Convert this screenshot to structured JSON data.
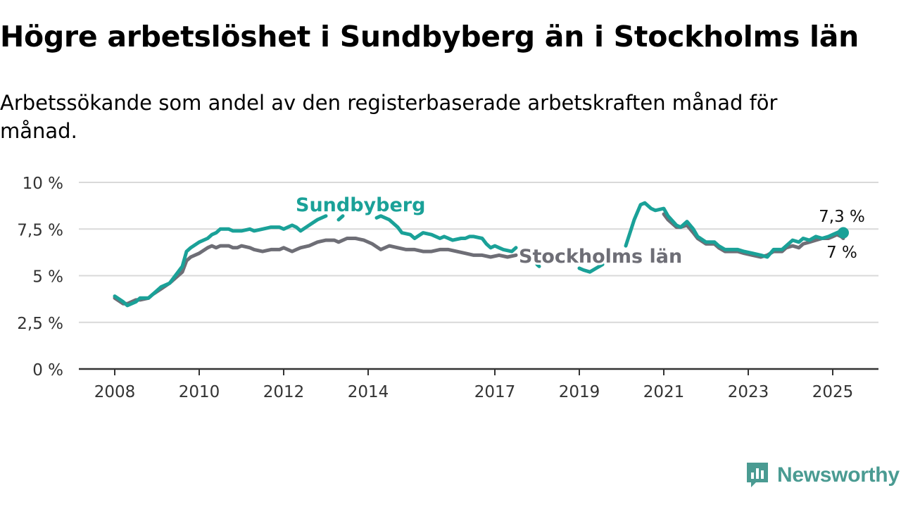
{
  "title": "Högre arbetslöshet i Sundbyberg än i Stockholms län",
  "subtitle": "Arbetssökande som andel av den registerbaserade arbetskraften månad för månad.",
  "brand": {
    "name": "Newsworthy",
    "icon": "newsworthy-logo-icon"
  },
  "colors": {
    "sundbyberg": "#1aa198",
    "stockholm": "#6e6e76",
    "grid": "#d9d9d9",
    "axis": "#333333"
  },
  "chart_data": {
    "type": "line",
    "title": "Högre arbetslöshet i Sundbyberg än i Stockholms län",
    "subtitle": "Arbetssökande som andel av den registerbaserade arbetskraften månad för månad.",
    "xlabel": "",
    "ylabel": "",
    "xlim": [
      2007.7,
      2026.1
    ],
    "ylim": [
      0,
      10
    ],
    "y_ticks": [
      0,
      2.5,
      5,
      7.5,
      10
    ],
    "y_tick_labels": [
      "0 %",
      "2,5 %",
      "5 %",
      "7,5 %",
      "10 %"
    ],
    "x_ticks": [
      2008,
      2010,
      2012,
      2014,
      2017,
      2019,
      2021,
      2023,
      2025
    ],
    "x_tick_labels": [
      "2008",
      "2010",
      "2012",
      "2014",
      "2017",
      "2019",
      "2021",
      "2023",
      "2025"
    ],
    "grid": true,
    "legend": "inline labels",
    "series": [
      {
        "name": "Sundbyberg",
        "label": "Sundbyberg",
        "end_label": "7,3 %",
        "x": [
          2008.0,
          2008.2,
          2008.3,
          2008.5,
          2008.6,
          2008.8,
          2008.9,
          2009.1,
          2009.3,
          2009.5,
          2009.6,
          2009.7,
          2009.8,
          2010.0,
          2010.2,
          2010.3,
          2010.4,
          2010.5,
          2010.7,
          2010.8,
          2010.9,
          2011.0,
          2011.2,
          2011.3,
          2011.5,
          2011.7,
          2011.8,
          2011.9,
          2012.0,
          2012.2,
          2012.3,
          2012.4,
          2012.6,
          2012.8,
          2013.0,
          null,
          2013.3,
          2013.4,
          null,
          2014.2,
          2014.3,
          2014.5,
          2014.7,
          2014.8,
          2015.0,
          2015.1,
          2015.3,
          2015.5,
          2015.7,
          2015.8,
          2016.0,
          2016.2,
          2016.3,
          2016.4,
          2016.5,
          2016.7,
          2016.8,
          2016.9,
          2017.0,
          2017.1,
          2017.2,
          2017.4,
          2017.5,
          null,
          2018.0,
          2018.05,
          null,
          2019.0,
          2019.1,
          2019.25,
          2019.4,
          2019.55,
          null,
          2020.1,
          2020.3,
          2020.45,
          2020.55,
          2020.7,
          2020.8,
          2021.0,
          2021.1,
          2021.3,
          2021.4,
          2021.55,
          2021.7,
          2021.8,
          2022.0,
          2022.2,
          2022.3,
          2022.45,
          2022.6,
          2022.75,
          2022.9,
          2023.1,
          2023.3,
          2023.45,
          2023.6,
          2023.8,
          2023.9,
          2024.05,
          2024.2,
          2024.3,
          2024.45,
          2024.6,
          2024.75,
          2024.9,
          2025.0,
          2025.1,
          2025.2,
          2025.25
        ],
        "y": [
          3.9,
          3.6,
          3.4,
          3.6,
          3.8,
          3.8,
          4.0,
          4.4,
          4.6,
          5.2,
          5.5,
          6.3,
          6.5,
          6.8,
          7.0,
          7.2,
          7.3,
          7.5,
          7.5,
          7.4,
          7.4,
          7.4,
          7.5,
          7.4,
          7.5,
          7.6,
          7.6,
          7.6,
          7.5,
          7.7,
          7.6,
          7.4,
          7.7,
          8.0,
          8.2,
          null,
          8.0,
          8.2,
          null,
          8.1,
          8.2,
          8.0,
          7.6,
          7.3,
          7.2,
          7.0,
          7.3,
          7.2,
          7.0,
          7.1,
          6.9,
          7.0,
          7.0,
          7.1,
          7.1,
          7.0,
          6.7,
          6.5,
          6.6,
          6.5,
          6.4,
          6.3,
          6.5,
          null,
          5.6,
          5.5,
          null,
          5.4,
          5.3,
          5.2,
          5.4,
          5.6,
          null,
          6.6,
          8.0,
          8.8,
          8.9,
          8.6,
          8.5,
          8.6,
          8.2,
          7.7,
          7.6,
          7.9,
          7.5,
          7.1,
          6.8,
          6.8,
          6.6,
          6.4,
          6.4,
          6.4,
          6.3,
          6.2,
          6.1,
          6.0,
          6.4,
          6.4,
          6.6,
          6.9,
          6.8,
          7.0,
          6.9,
          7.1,
          7.0,
          7.1,
          7.2,
          7.3,
          7.4,
          7.3
        ],
        "color": "#1aa198"
      },
      {
        "name": "Stockholms län",
        "label": "Stockholms län",
        "end_label": "7 %",
        "x": [
          2008.0,
          2008.2,
          2008.3,
          2008.5,
          2008.6,
          2008.8,
          2008.9,
          2009.1,
          2009.3,
          2009.5,
          2009.6,
          2009.7,
          2009.8,
          2010.0,
          2010.2,
          2010.3,
          2010.4,
          2010.5,
          2010.7,
          2010.8,
          2010.9,
          2011.0,
          2011.2,
          2011.3,
          2011.5,
          2011.7,
          2011.8,
          2011.9,
          2012.0,
          2012.2,
          2012.3,
          2012.4,
          2012.6,
          2012.8,
          2013.0,
          2013.2,
          2013.3,
          2013.5,
          2013.7,
          2013.9,
          2014.1,
          2014.3,
          2014.5,
          2014.7,
          2014.9,
          2015.1,
          2015.3,
          2015.5,
          2015.7,
          2015.9,
          2016.1,
          2016.3,
          2016.5,
          2016.7,
          2016.9,
          2017.1,
          2017.3,
          2017.5,
          null,
          2021.0,
          2021.1,
          2021.3,
          2021.4,
          2021.55,
          2021.7,
          2021.8,
          2022.0,
          2022.2,
          2022.3,
          2022.45,
          2022.6,
          2022.75,
          2022.9,
          2023.1,
          2023.3,
          2023.45,
          2023.6,
          2023.8,
          2023.9,
          2024.05,
          2024.2,
          2024.3,
          2024.45,
          2024.6,
          2024.75,
          2024.9,
          2025.0,
          2025.1,
          2025.2,
          2025.25
        ],
        "y": [
          3.8,
          3.5,
          3.5,
          3.7,
          3.7,
          3.8,
          4.0,
          4.3,
          4.6,
          5.0,
          5.2,
          5.8,
          6.0,
          6.2,
          6.5,
          6.6,
          6.5,
          6.6,
          6.6,
          6.5,
          6.5,
          6.6,
          6.5,
          6.4,
          6.3,
          6.4,
          6.4,
          6.4,
          6.5,
          6.3,
          6.4,
          6.5,
          6.6,
          6.8,
          6.9,
          6.9,
          6.8,
          7.0,
          7.0,
          6.9,
          6.7,
          6.4,
          6.6,
          6.5,
          6.4,
          6.4,
          6.3,
          6.3,
          6.4,
          6.4,
          6.3,
          6.2,
          6.1,
          6.1,
          6.0,
          6.1,
          6.0,
          6.1,
          null,
          8.3,
          8.0,
          7.6,
          7.6,
          7.7,
          7.3,
          7.0,
          6.7,
          6.7,
          6.5,
          6.3,
          6.3,
          6.3,
          6.2,
          6.1,
          6.0,
          6.1,
          6.3,
          6.3,
          6.5,
          6.6,
          6.5,
          6.7,
          6.8,
          6.9,
          7.0,
          7.0,
          7.1,
          7.2,
          7.1,
          7.0
        ],
        "color": "#6e6e76"
      }
    ]
  }
}
